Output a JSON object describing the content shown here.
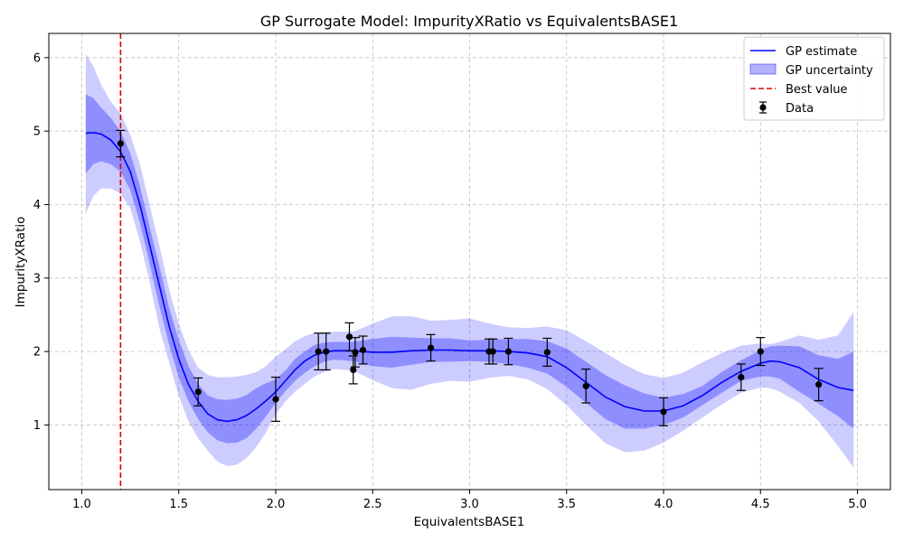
{
  "chart_data": {
    "type": "line",
    "title": "GP Surrogate Model: ImpurityXRatio vs EquivalentsBASE1",
    "xlabel": "EquivalentsBASE1",
    "ylabel": "ImpurityXRatio",
    "xlim": [
      0.83,
      5.17
    ],
    "ylim": [
      0.12,
      6.33
    ],
    "xticks": [
      1.0,
      1.5,
      2.0,
      2.5,
      3.0,
      3.5,
      4.0,
      4.5,
      5.0
    ],
    "xtick_labels": [
      "1.0",
      "1.5",
      "2.0",
      "2.5",
      "3.0",
      "3.5",
      "4.0",
      "4.5",
      "5.0"
    ],
    "yticks": [
      1,
      2,
      3,
      4,
      5,
      6
    ],
    "ytick_labels": [
      "1",
      "2",
      "3",
      "4",
      "5",
      "6"
    ],
    "grid": true,
    "legend_position": "top-right",
    "best_value_x": 1.2,
    "gp_estimate": {
      "name": "GP estimate",
      "color": "#0000ff",
      "x": [
        1.02,
        1.06,
        1.1,
        1.15,
        1.2,
        1.25,
        1.3,
        1.35,
        1.4,
        1.45,
        1.5,
        1.55,
        1.6,
        1.65,
        1.7,
        1.75,
        1.8,
        1.85,
        1.9,
        1.95,
        2.0,
        2.05,
        2.1,
        2.15,
        2.2,
        2.25,
        2.3,
        2.4,
        2.5,
        2.6,
        2.7,
        2.8,
        2.9,
        3.0,
        3.1,
        3.2,
        3.3,
        3.4,
        3.5,
        3.6,
        3.7,
        3.8,
        3.9,
        4.0,
        4.1,
        4.2,
        4.3,
        4.4,
        4.5,
        4.55,
        4.6,
        4.7,
        4.8,
        4.9,
        4.98
      ],
      "y": [
        4.97,
        4.98,
        4.96,
        4.88,
        4.72,
        4.45,
        4.0,
        3.45,
        2.9,
        2.35,
        1.9,
        1.55,
        1.32,
        1.15,
        1.07,
        1.05,
        1.07,
        1.13,
        1.22,
        1.33,
        1.45,
        1.6,
        1.75,
        1.87,
        1.95,
        1.99,
        2.01,
        2.01,
        1.99,
        1.99,
        2.01,
        2.02,
        2.02,
        2.01,
        2.01,
        2.0,
        1.98,
        1.93,
        1.78,
        1.58,
        1.38,
        1.25,
        1.19,
        1.19,
        1.26,
        1.4,
        1.58,
        1.73,
        1.84,
        1.87,
        1.86,
        1.78,
        1.62,
        1.51,
        1.47
      ],
      "inner_band": {
        "lower": [
          4.42,
          4.55,
          4.59,
          4.55,
          4.45,
          4.2,
          3.75,
          3.2,
          2.62,
          2.1,
          1.65,
          1.32,
          1.08,
          0.9,
          0.79,
          0.75,
          0.76,
          0.82,
          0.95,
          1.12,
          1.3,
          1.46,
          1.6,
          1.71,
          1.8,
          1.86,
          1.89,
          1.87,
          1.8,
          1.78,
          1.82,
          1.86,
          1.86,
          1.87,
          1.86,
          1.83,
          1.78,
          1.7,
          1.52,
          1.3,
          1.08,
          0.95,
          0.95,
          1.0,
          1.1,
          1.27,
          1.44,
          1.6,
          1.66,
          1.66,
          1.63,
          1.45,
          1.29,
          1.12,
          0.95
        ],
        "upper": [
          5.5,
          5.45,
          5.32,
          5.18,
          5.0,
          4.7,
          4.25,
          3.7,
          3.16,
          2.6,
          2.16,
          1.8,
          1.56,
          1.4,
          1.35,
          1.34,
          1.36,
          1.41,
          1.5,
          1.57,
          1.62,
          1.74,
          1.9,
          2.0,
          2.09,
          2.12,
          2.13,
          2.13,
          2.17,
          2.2,
          2.19,
          2.18,
          2.18,
          2.15,
          2.16,
          2.17,
          2.17,
          2.14,
          2.04,
          1.86,
          1.68,
          1.54,
          1.43,
          1.37,
          1.42,
          1.53,
          1.72,
          1.88,
          2.02,
          2.07,
          2.08,
          2.07,
          1.95,
          1.9,
          2.0
        ]
      },
      "outer_band": {
        "lower": [
          3.88,
          4.12,
          4.22,
          4.22,
          4.15,
          3.95,
          3.5,
          2.95,
          2.32,
          1.85,
          1.4,
          1.05,
          0.82,
          0.65,
          0.5,
          0.44,
          0.46,
          0.55,
          0.7,
          0.9,
          1.15,
          1.32,
          1.45,
          1.56,
          1.66,
          1.72,
          1.76,
          1.74,
          1.61,
          1.5,
          1.48,
          1.56,
          1.6,
          1.59,
          1.64,
          1.67,
          1.62,
          1.49,
          1.27,
          1.0,
          0.75,
          0.63,
          0.65,
          0.76,
          0.92,
          1.1,
          1.28,
          1.44,
          1.51,
          1.5,
          1.45,
          1.3,
          1.05,
          0.71,
          0.42
        ],
        "upper": [
          6.05,
          5.88,
          5.63,
          5.4,
          5.24,
          4.95,
          4.55,
          4.0,
          3.44,
          2.85,
          2.38,
          2.02,
          1.78,
          1.68,
          1.65,
          1.65,
          1.66,
          1.68,
          1.72,
          1.8,
          1.93,
          2.03,
          2.14,
          2.21,
          2.25,
          2.26,
          2.27,
          2.27,
          2.38,
          2.48,
          2.48,
          2.42,
          2.43,
          2.45,
          2.38,
          2.33,
          2.32,
          2.34,
          2.29,
          2.14,
          1.98,
          1.82,
          1.69,
          1.64,
          1.71,
          1.85,
          1.98,
          2.08,
          2.11,
          2.1,
          2.13,
          2.22,
          2.16,
          2.22,
          2.54
        ]
      }
    },
    "data_points": {
      "name": "Data",
      "x": [
        1.2,
        1.6,
        2.0,
        2.22,
        2.26,
        2.38,
        2.4,
        2.41,
        2.45,
        2.8,
        3.1,
        3.12,
        3.2,
        3.4,
        3.6,
        4.0,
        4.4,
        4.5,
        4.8
      ],
      "y": [
        4.83,
        1.45,
        1.35,
        2.0,
        2.0,
        2.2,
        1.75,
        1.99,
        2.02,
        2.05,
        2.0,
        2.0,
        2.0,
        1.99,
        1.53,
        1.18,
        1.65,
        2.0,
        1.55
      ],
      "err": [
        0.18,
        0.19,
        0.3,
        0.25,
        0.25,
        0.19,
        0.19,
        0.2,
        0.19,
        0.18,
        0.17,
        0.17,
        0.18,
        0.19,
        0.23,
        0.19,
        0.18,
        0.19,
        0.22
      ]
    },
    "legend": [
      {
        "label": "GP estimate",
        "kind": "line",
        "color": "#0000ff"
      },
      {
        "label": "GP uncertainty",
        "kind": "patch",
        "color": "#0000ff"
      },
      {
        "label": "Best value",
        "kind": "dashed",
        "color": "#e00000"
      },
      {
        "label": "Data",
        "kind": "errorbar",
        "color": "#000000"
      }
    ]
  }
}
